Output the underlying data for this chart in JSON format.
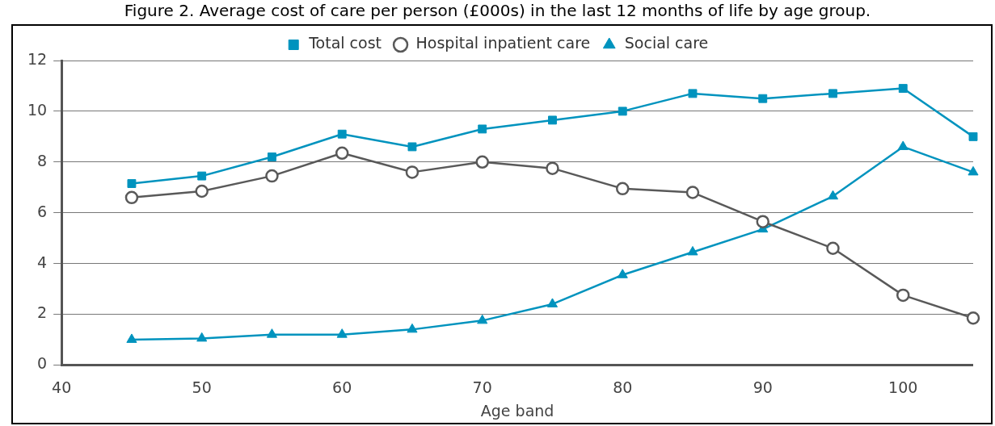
{
  "chart_data": {
    "type": "line",
    "title": "Figure 2. Average cost of care per person (£000s) in the last 12 months of life by age group.",
    "xlabel": "Age band",
    "x": [
      45,
      50,
      55,
      60,
      65,
      70,
      75,
      80,
      85,
      90,
      95,
      100,
      105
    ],
    "series": [
      {
        "name": "Total cost",
        "color": "#0093be",
        "marker": "square",
        "values": [
          7.15,
          7.45,
          8.2,
          9.1,
          8.6,
          9.3,
          9.65,
          10.0,
          10.7,
          10.5,
          10.7,
          10.9,
          9.0
        ]
      },
      {
        "name": "Hospital inpatient care",
        "color": "#595959",
        "marker": "circle",
        "values": [
          6.6,
          6.85,
          7.45,
          8.35,
          7.6,
          8.0,
          7.75,
          6.95,
          6.8,
          5.65,
          4.6,
          2.75,
          1.85
        ]
      },
      {
        "name": "Social care",
        "color": "#0093be",
        "marker": "triangle",
        "values": [
          1.0,
          1.05,
          1.2,
          1.2,
          1.4,
          1.75,
          2.4,
          3.55,
          4.45,
          5.35,
          6.65,
          8.6,
          7.6
        ]
      }
    ],
    "xlim": [
      40,
      105
    ],
    "xticks": [
      40,
      50,
      60,
      70,
      80,
      90,
      100
    ],
    "ylim": [
      0,
      12
    ],
    "yticks": [
      0,
      2,
      4,
      6,
      8,
      10,
      12
    ],
    "grid": "y",
    "legend": "top",
    "line_style": "solid"
  }
}
